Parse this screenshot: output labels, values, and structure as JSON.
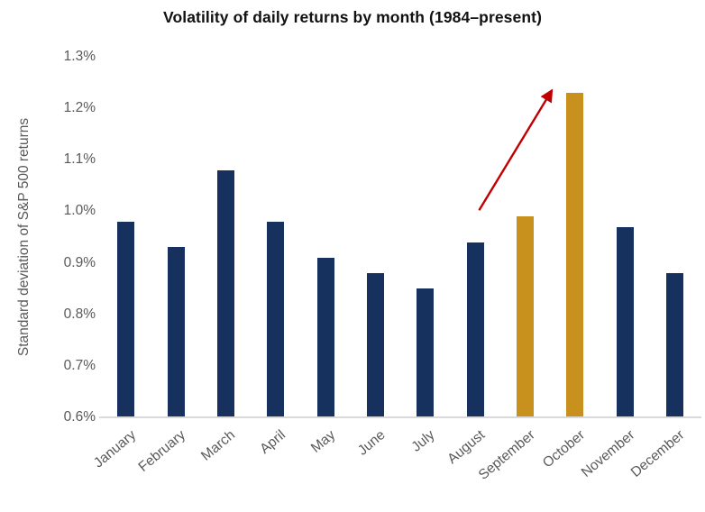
{
  "title": "Volatility of daily returns by month (1984–present)",
  "chart_data": {
    "type": "bar",
    "title": "Volatility of daily returns by month (1984–present)",
    "xlabel": "",
    "ylabel": "Standard deviation of S&P 500 returns",
    "categories": [
      "January",
      "February",
      "March",
      "April",
      "May",
      "June",
      "July",
      "August",
      "September",
      "October",
      "November",
      "December"
    ],
    "values": [
      0.98,
      0.93,
      1.08,
      0.98,
      0.91,
      0.88,
      0.85,
      0.94,
      0.99,
      1.23,
      0.97,
      0.88
    ],
    "unit": "%",
    "ylim": [
      0.6,
      1.3
    ],
    "ytick_step": 0.1,
    "ytick_labels": [
      "0.6%",
      "0.7%",
      "0.8%",
      "0.9%",
      "1.0%",
      "1.1%",
      "1.2%",
      "1.3%"
    ],
    "grid": false,
    "legend": "none",
    "highlighted_categories": [
      "September",
      "October"
    ],
    "colors": {
      "default_bar": "#17315F",
      "highlight_bar": "#C8901C",
      "axis_line": "#D9D9D9",
      "tick_text": "#595959",
      "title_text": "#111111",
      "annotation_arrow": "#C00000"
    },
    "annotation": {
      "type": "arrow",
      "color": "#C00000",
      "from": {
        "month_position": 7.08,
        "value": 1.002
      },
      "to": {
        "month_position": 8.54,
        "value": 1.235
      }
    }
  }
}
